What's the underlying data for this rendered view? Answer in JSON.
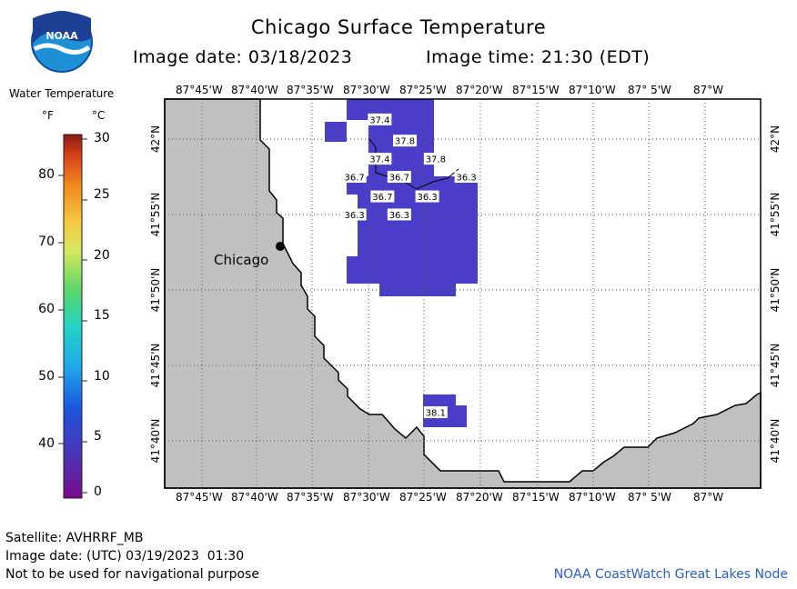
{
  "header": {
    "title": "Chicago Surface Temperature",
    "image_date": "Image date: 03/18/2023",
    "image_time": "Image time: 21:30 (EDT)"
  },
  "logo": {
    "text": "NOAA",
    "colors": {
      "dark": "#1c3f94",
      "light": "#1e90d6"
    }
  },
  "legend": {
    "title": "Water Temperature",
    "unit_f": "°F",
    "unit_c": "°C",
    "f_ticks": [
      "80",
      "70",
      "60",
      "50",
      "40"
    ],
    "c_ticks": [
      "30",
      "25",
      "20",
      "15",
      "10",
      "5",
      "0"
    ]
  },
  "map": {
    "top_labels": [
      "87°45'W",
      "87°40'W",
      "87°35'W",
      "87°30'W",
      "87°25'W",
      "87°20'W",
      "87°15'W",
      "87°10'W",
      "87° 5'W",
      "87°W"
    ],
    "bottom_labels": [
      "87°45'W",
      "87°40'W",
      "87°35'W",
      "87°30'W",
      "87°25'W",
      "87°20'W",
      "87°15'W",
      "87°10'W",
      "87° 5'W",
      "87°W"
    ],
    "lat_labels": [
      "42°N",
      "41°55'N",
      "41°50'N",
      "41°45'N",
      "41°40'N"
    ],
    "city": "Chicago",
    "colors": {
      "land": "#c0c0c0",
      "water_cold": "#4a3ec8",
      "grid": "#555555"
    },
    "temperature_labels": [
      {
        "value": "37.4",
        "lon": -87.4833,
        "lat": 42.0217
      },
      {
        "value": "37.8",
        "lon": -87.4458,
        "lat": 41.9983
      },
      {
        "value": "37.4",
        "lon": -87.4833,
        "lat": 41.9783
      },
      {
        "value": "37.8",
        "lon": -87.4,
        "lat": 41.9783
      },
      {
        "value": "36.7",
        "lon": -87.5208,
        "lat": 41.9583
      },
      {
        "value": "36.7",
        "lon": -87.4542,
        "lat": 41.9583
      },
      {
        "value": "36.3",
        "lon": -87.3542,
        "lat": 41.9583
      },
      {
        "value": "36.7",
        "lon": -87.4792,
        "lat": 41.9367
      },
      {
        "value": "36.3",
        "lon": -87.4125,
        "lat": 41.9367
      },
      {
        "value": "36.3",
        "lon": -87.5208,
        "lat": 41.9167
      },
      {
        "value": "36.3",
        "lon": -87.4542,
        "lat": 41.9167
      },
      {
        "value": "38.1",
        "lon": -87.4,
        "lat": 41.6983
      }
    ]
  },
  "footer": {
    "satellite": "Satellite: AVHRRF_MB",
    "utc_date": "Image date: (UTC) 03/19/2023  01:30",
    "disclaimer": "Not to be used for navigational purpose",
    "credit": "NOAA CoastWatch Great Lakes Node"
  }
}
